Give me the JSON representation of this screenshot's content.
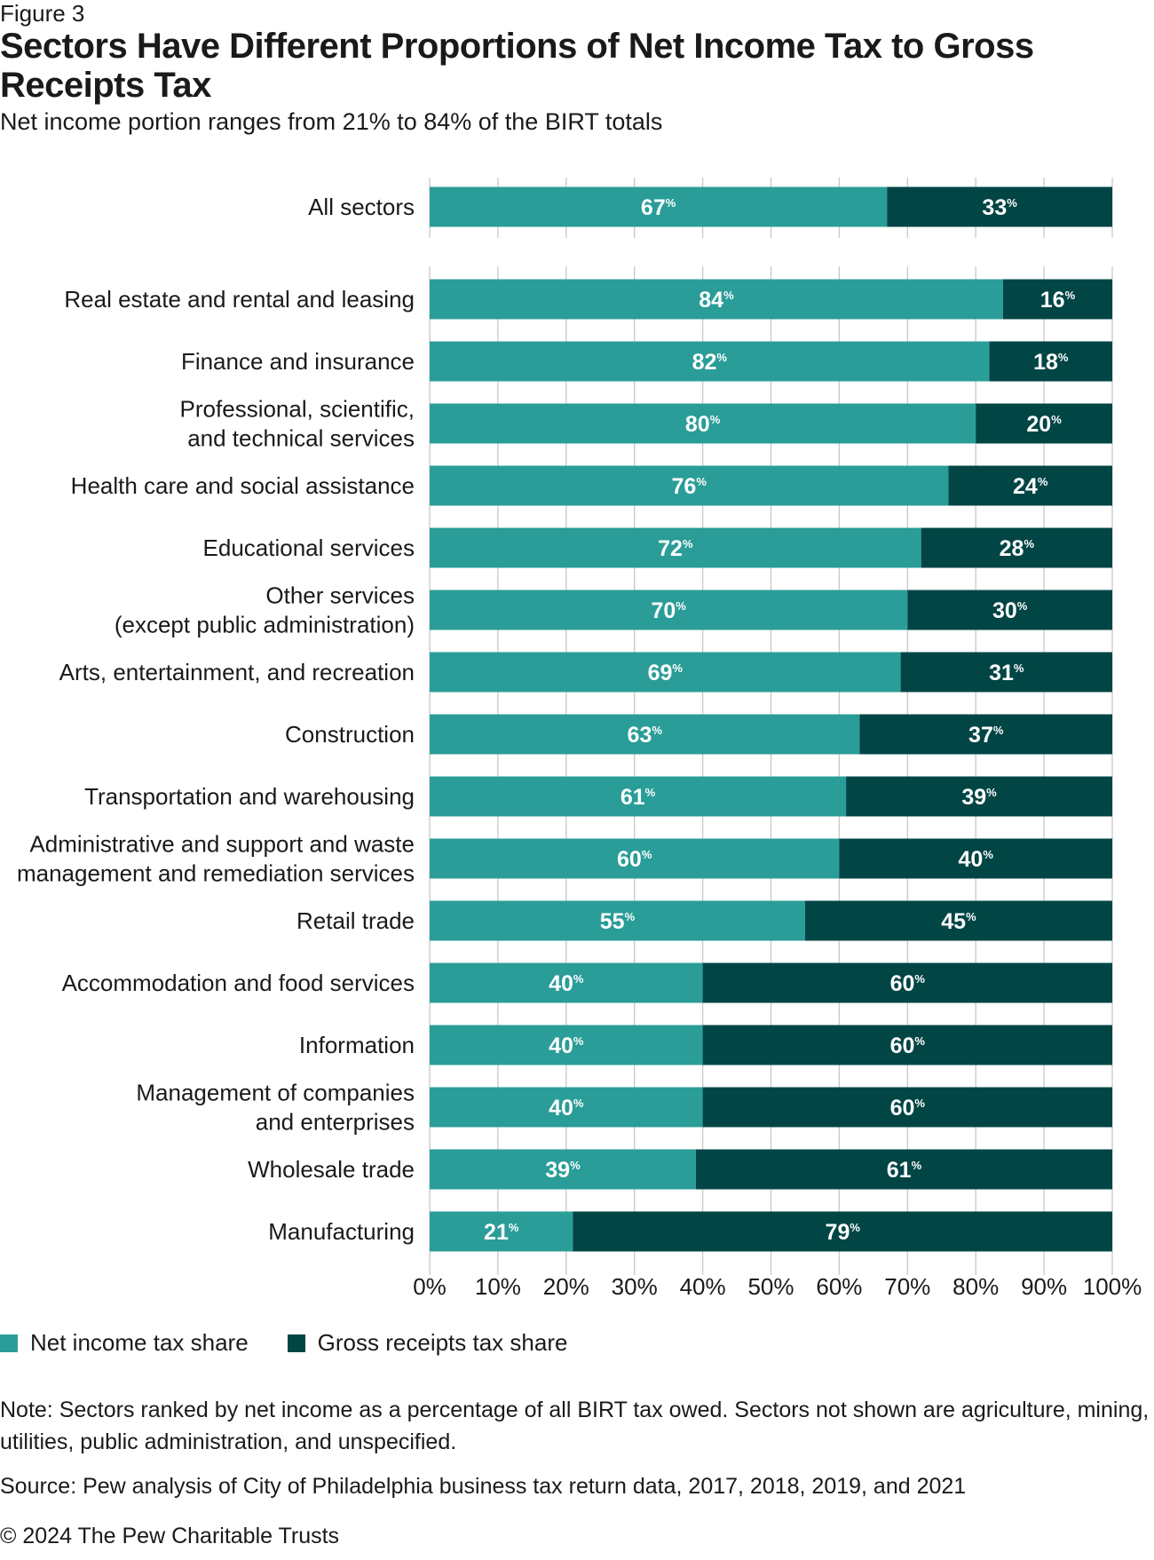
{
  "figure_label": "Figure 3",
  "chart_data": {
    "type": "bar",
    "orientation": "horizontal",
    "stacked": true,
    "title": "Sectors Have Different Proportions of Net Income Tax to Gross Receipts Tax",
    "subtitle": "Net income portion ranges from 21% to 84% of the BIRT totals",
    "xlim": [
      0,
      100
    ],
    "xticks": [
      "0%",
      "10%",
      "20%",
      "30%",
      "40%",
      "50%",
      "60%",
      "70%",
      "80%",
      "90%",
      "100%"
    ],
    "grid": true,
    "legend_placement": "bottom-left",
    "colors": {
      "net": "#2a9d98",
      "gross": "#024545"
    },
    "summary": {
      "category": "All sectors",
      "net": 67,
      "gross": 33
    },
    "categories": [
      [
        "Real estate and rental and leasing"
      ],
      [
        "Finance and insurance"
      ],
      [
        "Professional, scientific,",
        "and technical services"
      ],
      [
        "Health care and social assistance"
      ],
      [
        "Educational services"
      ],
      [
        "Other services",
        "(except public administration)"
      ],
      [
        "Arts, entertainment, and recreation"
      ],
      [
        "Construction"
      ],
      [
        "Transportation and warehousing"
      ],
      [
        "Administrative and support and waste",
        "management and remediation services"
      ],
      [
        "Retail trade"
      ],
      [
        "Accommodation and food services"
      ],
      [
        "Information"
      ],
      [
        "Management of companies",
        "and enterprises"
      ],
      [
        "Wholesale trade"
      ],
      [
        "Manufacturing"
      ]
    ],
    "series": [
      {
        "name": "Net income tax share",
        "values": [
          84,
          82,
          80,
          76,
          72,
          70,
          69,
          63,
          61,
          60,
          55,
          40,
          40,
          40,
          39,
          21
        ]
      },
      {
        "name": "Gross receipts tax share",
        "values": [
          16,
          18,
          20,
          24,
          28,
          30,
          31,
          37,
          39,
          40,
          45,
          60,
          60,
          60,
          61,
          79
        ]
      }
    ]
  },
  "legend": {
    "net": "Net income tax share",
    "gross": "Gross receipts tax share"
  },
  "note": "Note: Sectors ranked by net income as a percentage of all BIRT tax owed. Sectors not shown are agriculture, mining, utilities, public administration, and unspecified.",
  "source": "Source: Pew analysis of City of Philadelphia business tax return data, 2017, 2018, 2019, and 2021",
  "copyright": "© 2024 The Pew Charitable Trusts"
}
